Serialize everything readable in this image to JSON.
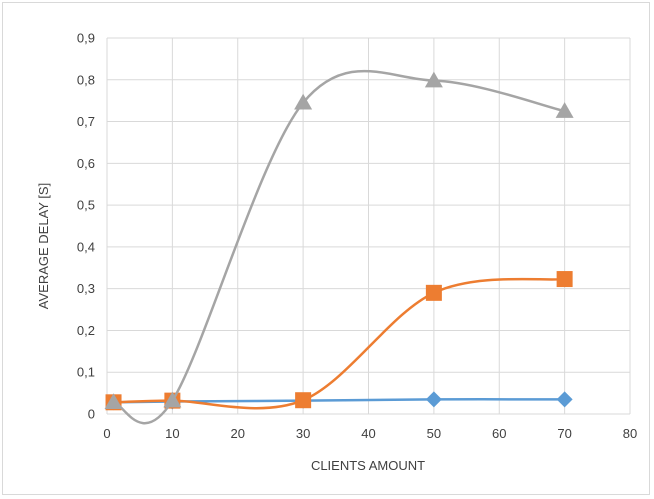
{
  "chart_data": {
    "type": "line",
    "title": "",
    "xlabel": "CLIENTS AMOUNT",
    "ylabel": "AVERAGE DELAY [S]",
    "xlim": [
      0,
      80
    ],
    "ylim": [
      0,
      0.9
    ],
    "x_ticks": [
      0,
      10,
      20,
      30,
      40,
      50,
      60,
      70,
      80
    ],
    "x_tick_labels": [
      "0",
      "10",
      "20",
      "30",
      "40",
      "50",
      "60",
      "70",
      "80"
    ],
    "y_ticks": [
      0,
      0.1,
      0.2,
      0.3,
      0.4,
      0.5,
      0.6,
      0.7,
      0.8,
      0.9
    ],
    "y_tick_labels": [
      "0",
      "0,1",
      "0,2",
      "0,3",
      "0,4",
      "0,5",
      "0,6",
      "0,7",
      "0,8",
      "0,9"
    ],
    "grid": true,
    "legend": "none",
    "smooth": true,
    "series": [
      {
        "color": "#5b9bd5",
        "marker": "diamond",
        "x": [
          1,
          10,
          30,
          50,
          70
        ],
        "y": [
          0.028,
          0.03,
          0.032,
          0.035,
          0.035
        ]
      },
      {
        "color": "#ed7d31",
        "marker": "square",
        "x": [
          1,
          10,
          30,
          50,
          70
        ],
        "y": [
          0.028,
          0.032,
          0.033,
          0.29,
          0.323
        ]
      },
      {
        "color": "#a5a5a5",
        "marker": "triangle",
        "x": [
          1,
          10,
          30,
          50,
          70
        ],
        "y": [
          0.028,
          0.032,
          0.745,
          0.798,
          0.725
        ]
      }
    ]
  }
}
